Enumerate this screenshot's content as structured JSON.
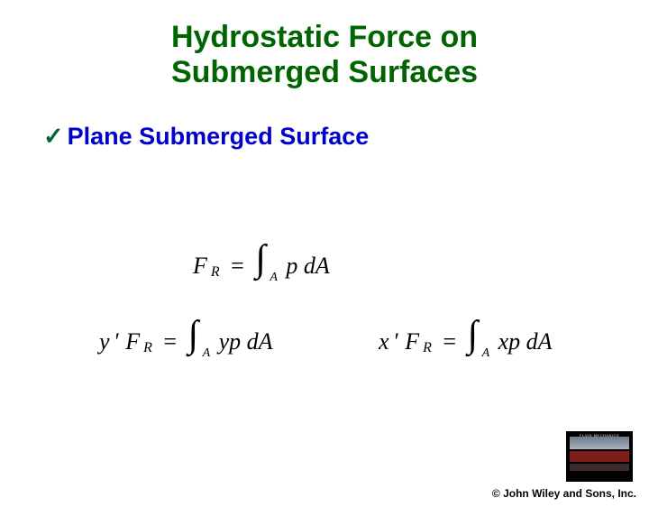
{
  "title": {
    "line1": "Hydrostatic Force on",
    "line2": "Submerged Surfaces",
    "color": "#006400",
    "fontsize": 34
  },
  "subtitle": {
    "checkmark": "✓",
    "check_color": "#006633",
    "text": "Plane Submerged Surface",
    "text_color": "#0000cc",
    "fontsize": 27
  },
  "equations": {
    "eq1": {
      "lhs_var": "F",
      "lhs_sub": "R",
      "int_sub": "A",
      "integrand": "p dA"
    },
    "eq2": {
      "lhs_prefix": "y",
      "lhs_prime": "′",
      "lhs_var": "F",
      "lhs_sub": "R",
      "int_sub": "A",
      "integrand": "yp dA"
    },
    "eq3": {
      "lhs_prefix": "x",
      "lhs_prime": "′",
      "lhs_var": "F",
      "lhs_sub": "R",
      "int_sub": "A",
      "integrand": "xp dA"
    },
    "text_color": "#000000",
    "fontsize": 26
  },
  "copyright": "© John Wiley and Sons, Inc.",
  "thumbnail_caption": "FLUID MECHANICS"
}
